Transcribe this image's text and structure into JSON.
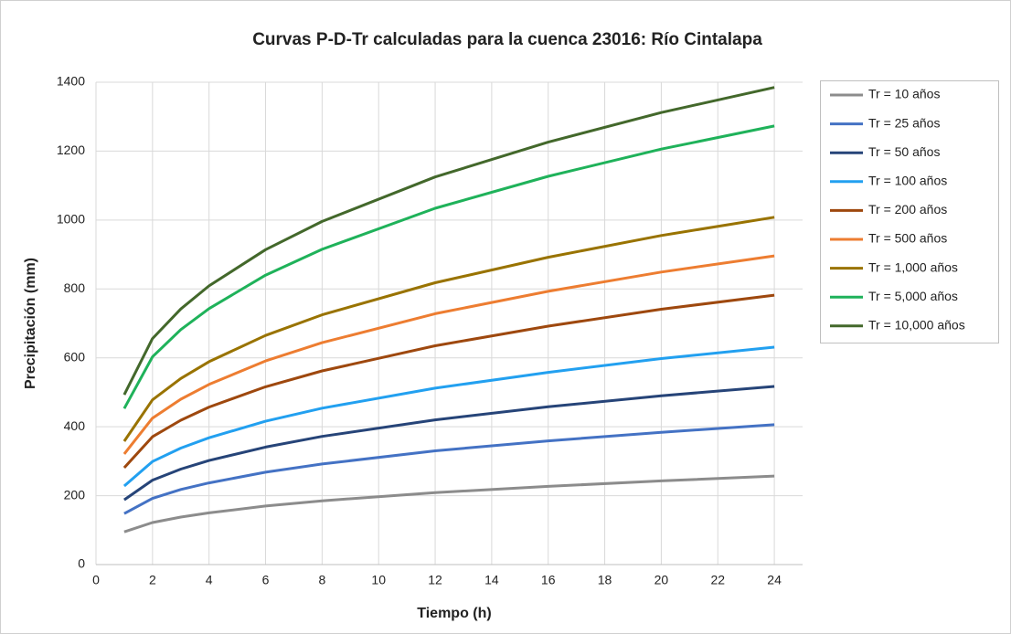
{
  "chart_data": {
    "type": "line",
    "title": "Curvas P-D-Tr calculadas para la cuenca 23016: Río Cintalapa",
    "x_label": "Tiempo (h)",
    "y_label": "Precipitación (mm)",
    "x": [
      1,
      2,
      3,
      4,
      6,
      8,
      12,
      16,
      20,
      24
    ],
    "xlim": [
      0,
      25
    ],
    "xticks": [
      0,
      2,
      4,
      6,
      8,
      10,
      12,
      14,
      16,
      18,
      20,
      22,
      24
    ],
    "ylim": [
      0,
      1400
    ],
    "yticks": [
      0,
      200,
      400,
      600,
      800,
      1000,
      1200,
      1400
    ],
    "grid": true,
    "legend": "right",
    "series": [
      {
        "name": "Tr = 10 años",
        "color": "#8c8c8c",
        "values": [
          95,
          122,
          138,
          150,
          170,
          185,
          209,
          227,
          243,
          257
        ]
      },
      {
        "name": "Tr = 25 años",
        "color": "#4472c4",
        "values": [
          148,
          192,
          218,
          237,
          268,
          292,
          330,
          359,
          384,
          406
        ]
      },
      {
        "name": "Tr = 50 años",
        "color": "#264478",
        "values": [
          188,
          245,
          277,
          302,
          341,
          372,
          420,
          458,
          490,
          517
        ]
      },
      {
        "name": "Tr = 100 años",
        "color": "#22a0f0",
        "values": [
          228,
          299,
          338,
          368,
          416,
          454,
          512,
          558,
          598,
          631
        ]
      },
      {
        "name": "Tr = 200 años",
        "color": "#9e480e",
        "values": [
          281,
          371,
          419,
          457,
          516,
          562,
          635,
          692,
          741,
          782
        ]
      },
      {
        "name": "Tr = 500 años",
        "color": "#ed7d31",
        "values": [
          321,
          425,
          480,
          523,
          591,
          644,
          728,
          793,
          849,
          896
        ]
      },
      {
        "name": "Tr = 1,000 años",
        "color": "#997300",
        "values": [
          358,
          478,
          540,
          589,
          665,
          725,
          818,
          892,
          955,
          1008
        ]
      },
      {
        "name": "Tr = 5,000 años",
        "color": "#1fb25a",
        "values": [
          453,
          603,
          682,
          743,
          840,
          915,
          1034,
          1127,
          1206,
          1273
        ]
      },
      {
        "name": "Tr = 10,000 años",
        "color": "#43682b",
        "values": [
          493,
          656,
          742,
          809,
          914,
          996,
          1125,
          1226,
          1312,
          1385
        ]
      }
    ]
  }
}
